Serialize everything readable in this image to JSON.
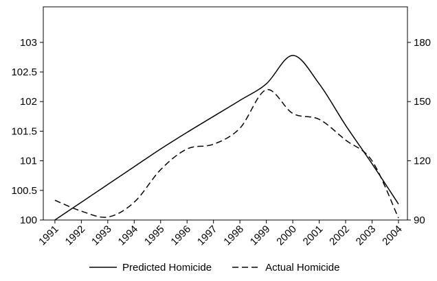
{
  "chart_data": {
    "type": "line",
    "x": [
      1991,
      1992,
      1993,
      1994,
      1995,
      1996,
      1997,
      1998,
      1999,
      2000,
      2001,
      2002,
      2003,
      2004
    ],
    "xlim": [
      1990.56,
      2004.34
    ],
    "xticks": [
      1991,
      1992,
      1993,
      1994,
      1995,
      1996,
      1997,
      1998,
      1999,
      2000,
      2001,
      2002,
      2003,
      2004
    ],
    "ylim": [
      100,
      103.6
    ],
    "yticks": [
      100,
      100.5,
      101,
      101.5,
      102,
      102.5,
      103
    ],
    "y2lim": [
      90,
      198
    ],
    "y2ticks": [
      90,
      120,
      150,
      180
    ],
    "grid": false,
    "legend": "bottom",
    "series": [
      {
        "name": "Predicted Homicide",
        "color": "#000000",
        "dash": "solid",
        "values": [
          100.0,
          100.3,
          100.6,
          100.9,
          101.2,
          101.48,
          101.75,
          102.02,
          102.3,
          102.78,
          102.3,
          101.6,
          100.95,
          100.27
        ]
      },
      {
        "name": "Actual Homicide",
        "color": "#000000",
        "dash": "dashed",
        "axis": "y2",
        "values": [
          100,
          94.5,
          91.5,
          99,
          115.5,
          126,
          128.4,
          136.5,
          156,
          144,
          141,
          130.5,
          120,
          91
        ]
      }
    ]
  }
}
